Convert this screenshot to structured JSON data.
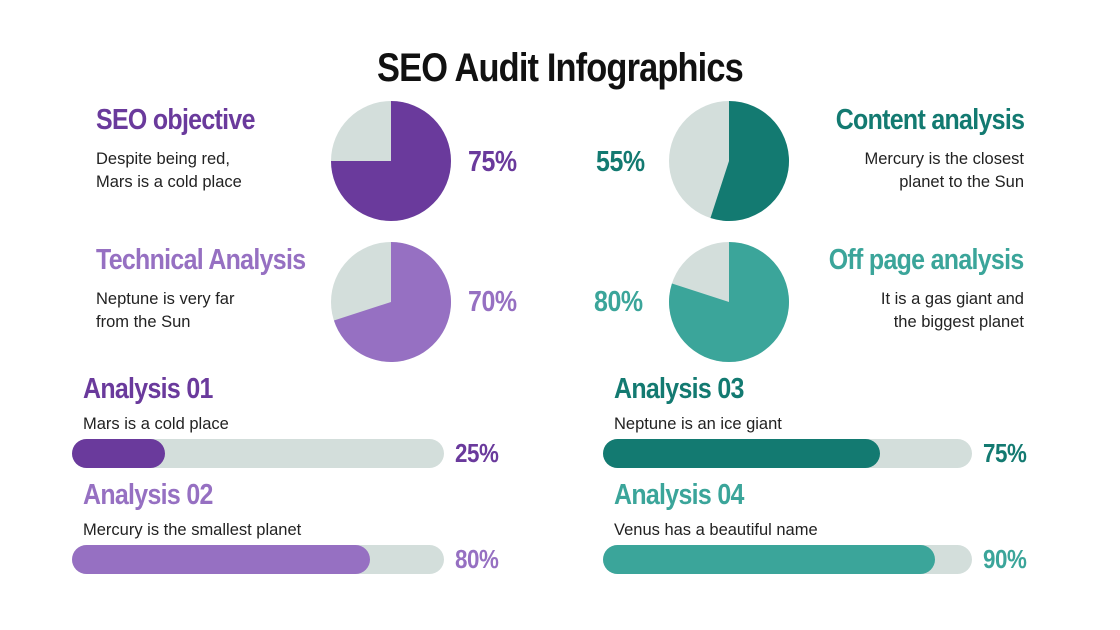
{
  "title": "SEO Audit Infographics",
  "colors": {
    "purple_dark": "#6a3a9c",
    "purple_light": "#9670c2",
    "teal_dark": "#137a71",
    "teal_light": "#3ba59a",
    "track": "#d3dedb"
  },
  "pies": [
    {
      "heading": "SEO objective",
      "desc_line1": "Despite being red,",
      "desc_line2": "Mars is a cold place",
      "label": "75%",
      "value": 75
    },
    {
      "heading": "Technical Analysis",
      "desc_line1": "Neptune is very far",
      "desc_line2": "from the Sun",
      "label": "70%",
      "value": 70
    },
    {
      "heading": "Content analysis",
      "desc_line1": "Mercury is the closest",
      "desc_line2": "planet to the Sun",
      "label": "55%",
      "value": 55
    },
    {
      "heading": "Off page analysis",
      "desc_line1": "It is a gas giant and",
      "desc_line2": "the biggest planet",
      "label": "80%",
      "value": 80
    }
  ],
  "bars": [
    {
      "heading": "Analysis 01",
      "desc": "Mars is a cold place",
      "label": "25%",
      "value": 25
    },
    {
      "heading": "Analysis 02",
      "desc": "Mercury is the smallest planet",
      "label": "80%",
      "value": 80
    },
    {
      "heading": "Analysis 03",
      "desc": "Neptune is an ice giant",
      "label": "75%",
      "value": 75
    },
    {
      "heading": "Analysis 04",
      "desc": "Venus has a beautiful name",
      "label": "90%",
      "value": 90
    }
  ],
  "chart_data": [
    {
      "type": "pie",
      "title": "SEO objective",
      "values": [
        75,
        25
      ],
      "value_label": "75%"
    },
    {
      "type": "pie",
      "title": "Technical Analysis",
      "values": [
        70,
        30
      ],
      "value_label": "70%"
    },
    {
      "type": "pie",
      "title": "Content analysis",
      "values": [
        55,
        45
      ],
      "value_label": "55%"
    },
    {
      "type": "pie",
      "title": "Off page analysis",
      "values": [
        80,
        20
      ],
      "value_label": "80%"
    },
    {
      "type": "bar",
      "title": "Analysis 01",
      "values": [
        25
      ],
      "value_label": "25%",
      "ylim": [
        0,
        100
      ]
    },
    {
      "type": "bar",
      "title": "Analysis 02",
      "values": [
        80
      ],
      "value_label": "80%",
      "ylim": [
        0,
        100
      ]
    },
    {
      "type": "bar",
      "title": "Analysis 03",
      "values": [
        75
      ],
      "value_label": "75%",
      "ylim": [
        0,
        100
      ]
    },
    {
      "type": "bar",
      "title": "Analysis 04",
      "values": [
        90
      ],
      "value_label": "90%",
      "ylim": [
        0,
        100
      ]
    }
  ]
}
